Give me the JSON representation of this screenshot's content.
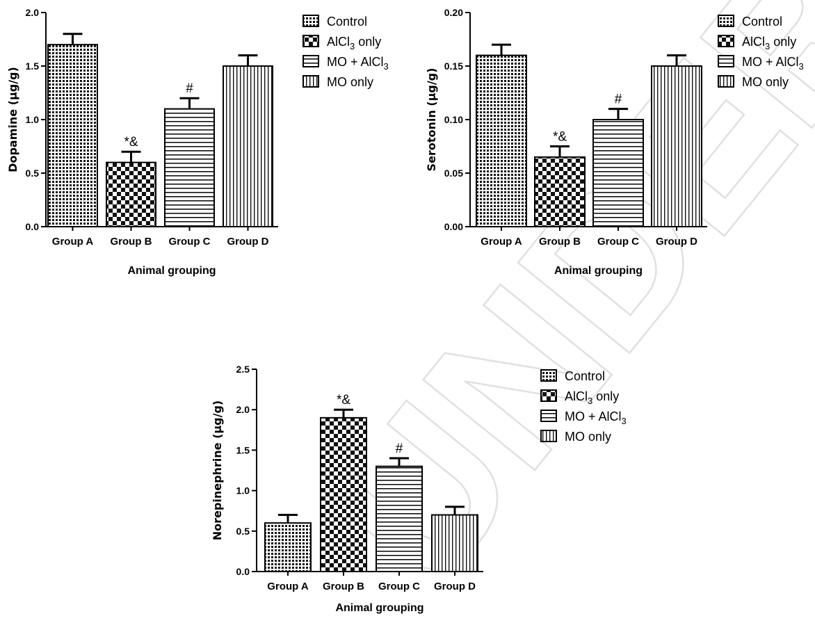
{
  "watermark": "UNDER REVIEW",
  "legend_entries": [
    "Control",
    "AlCl",
    "3",
    " only",
    "MO + AlCl",
    "3",
    "MO only"
  ],
  "chart_data": [
    {
      "type": "bar",
      "categories": [
        "Group A",
        "Group B",
        "Group C",
        "Group D"
      ],
      "series": [
        {
          "values": [
            1.7,
            0.6,
            1.1,
            1.5
          ],
          "errors": [
            0.1,
            0.1,
            0.1,
            0.1
          ]
        }
      ],
      "patterns": [
        "control",
        "alcl3",
        "moalcl3",
        "moonly"
      ],
      "annotations": [
        "",
        "*&",
        "#",
        ""
      ],
      "ylabel": "Dopamine (µg/g)",
      "xlabel": "Animal grouping",
      "ylim": [
        0,
        2.0
      ],
      "yticks": [
        "0.0",
        "0.5",
        "1.0",
        "1.5",
        "2.0"
      ],
      "legend": "right"
    },
    {
      "type": "bar",
      "categories": [
        "Group A",
        "Group B",
        "Group C",
        "Group D"
      ],
      "series": [
        {
          "values": [
            0.16,
            0.065,
            0.1,
            0.15
          ],
          "errors": [
            0.01,
            0.01,
            0.01,
            0.01
          ]
        }
      ],
      "patterns": [
        "control",
        "alcl3",
        "moalcl3",
        "moonly"
      ],
      "annotations": [
        "",
        "*&",
        "#",
        ""
      ],
      "ylabel": "Serotonin (µg/g)",
      "xlabel": "Animal grouping",
      "ylim": [
        0,
        0.2
      ],
      "yticks": [
        "0.00",
        "0.05",
        "0.10",
        "0.15",
        "0.20"
      ],
      "legend": "right"
    },
    {
      "type": "bar",
      "categories": [
        "Group A",
        "Group B",
        "Group C",
        "Group D"
      ],
      "series": [
        {
          "values": [
            0.6,
            1.9,
            1.3,
            0.7
          ],
          "errors": [
            0.1,
            0.1,
            0.1,
            0.1
          ]
        }
      ],
      "patterns": [
        "control",
        "alcl3",
        "moalcl3",
        "moonly"
      ],
      "annotations": [
        "",
        "*&",
        "#",
        ""
      ],
      "ylabel": "Norepinephrine (µg/g)",
      "xlabel": "Animal grouping",
      "ylim": [
        0,
        2.5
      ],
      "yticks": [
        "0.0",
        "0.5",
        "1.0",
        "1.5",
        "2.0",
        "2.5"
      ],
      "legend": "right"
    }
  ]
}
